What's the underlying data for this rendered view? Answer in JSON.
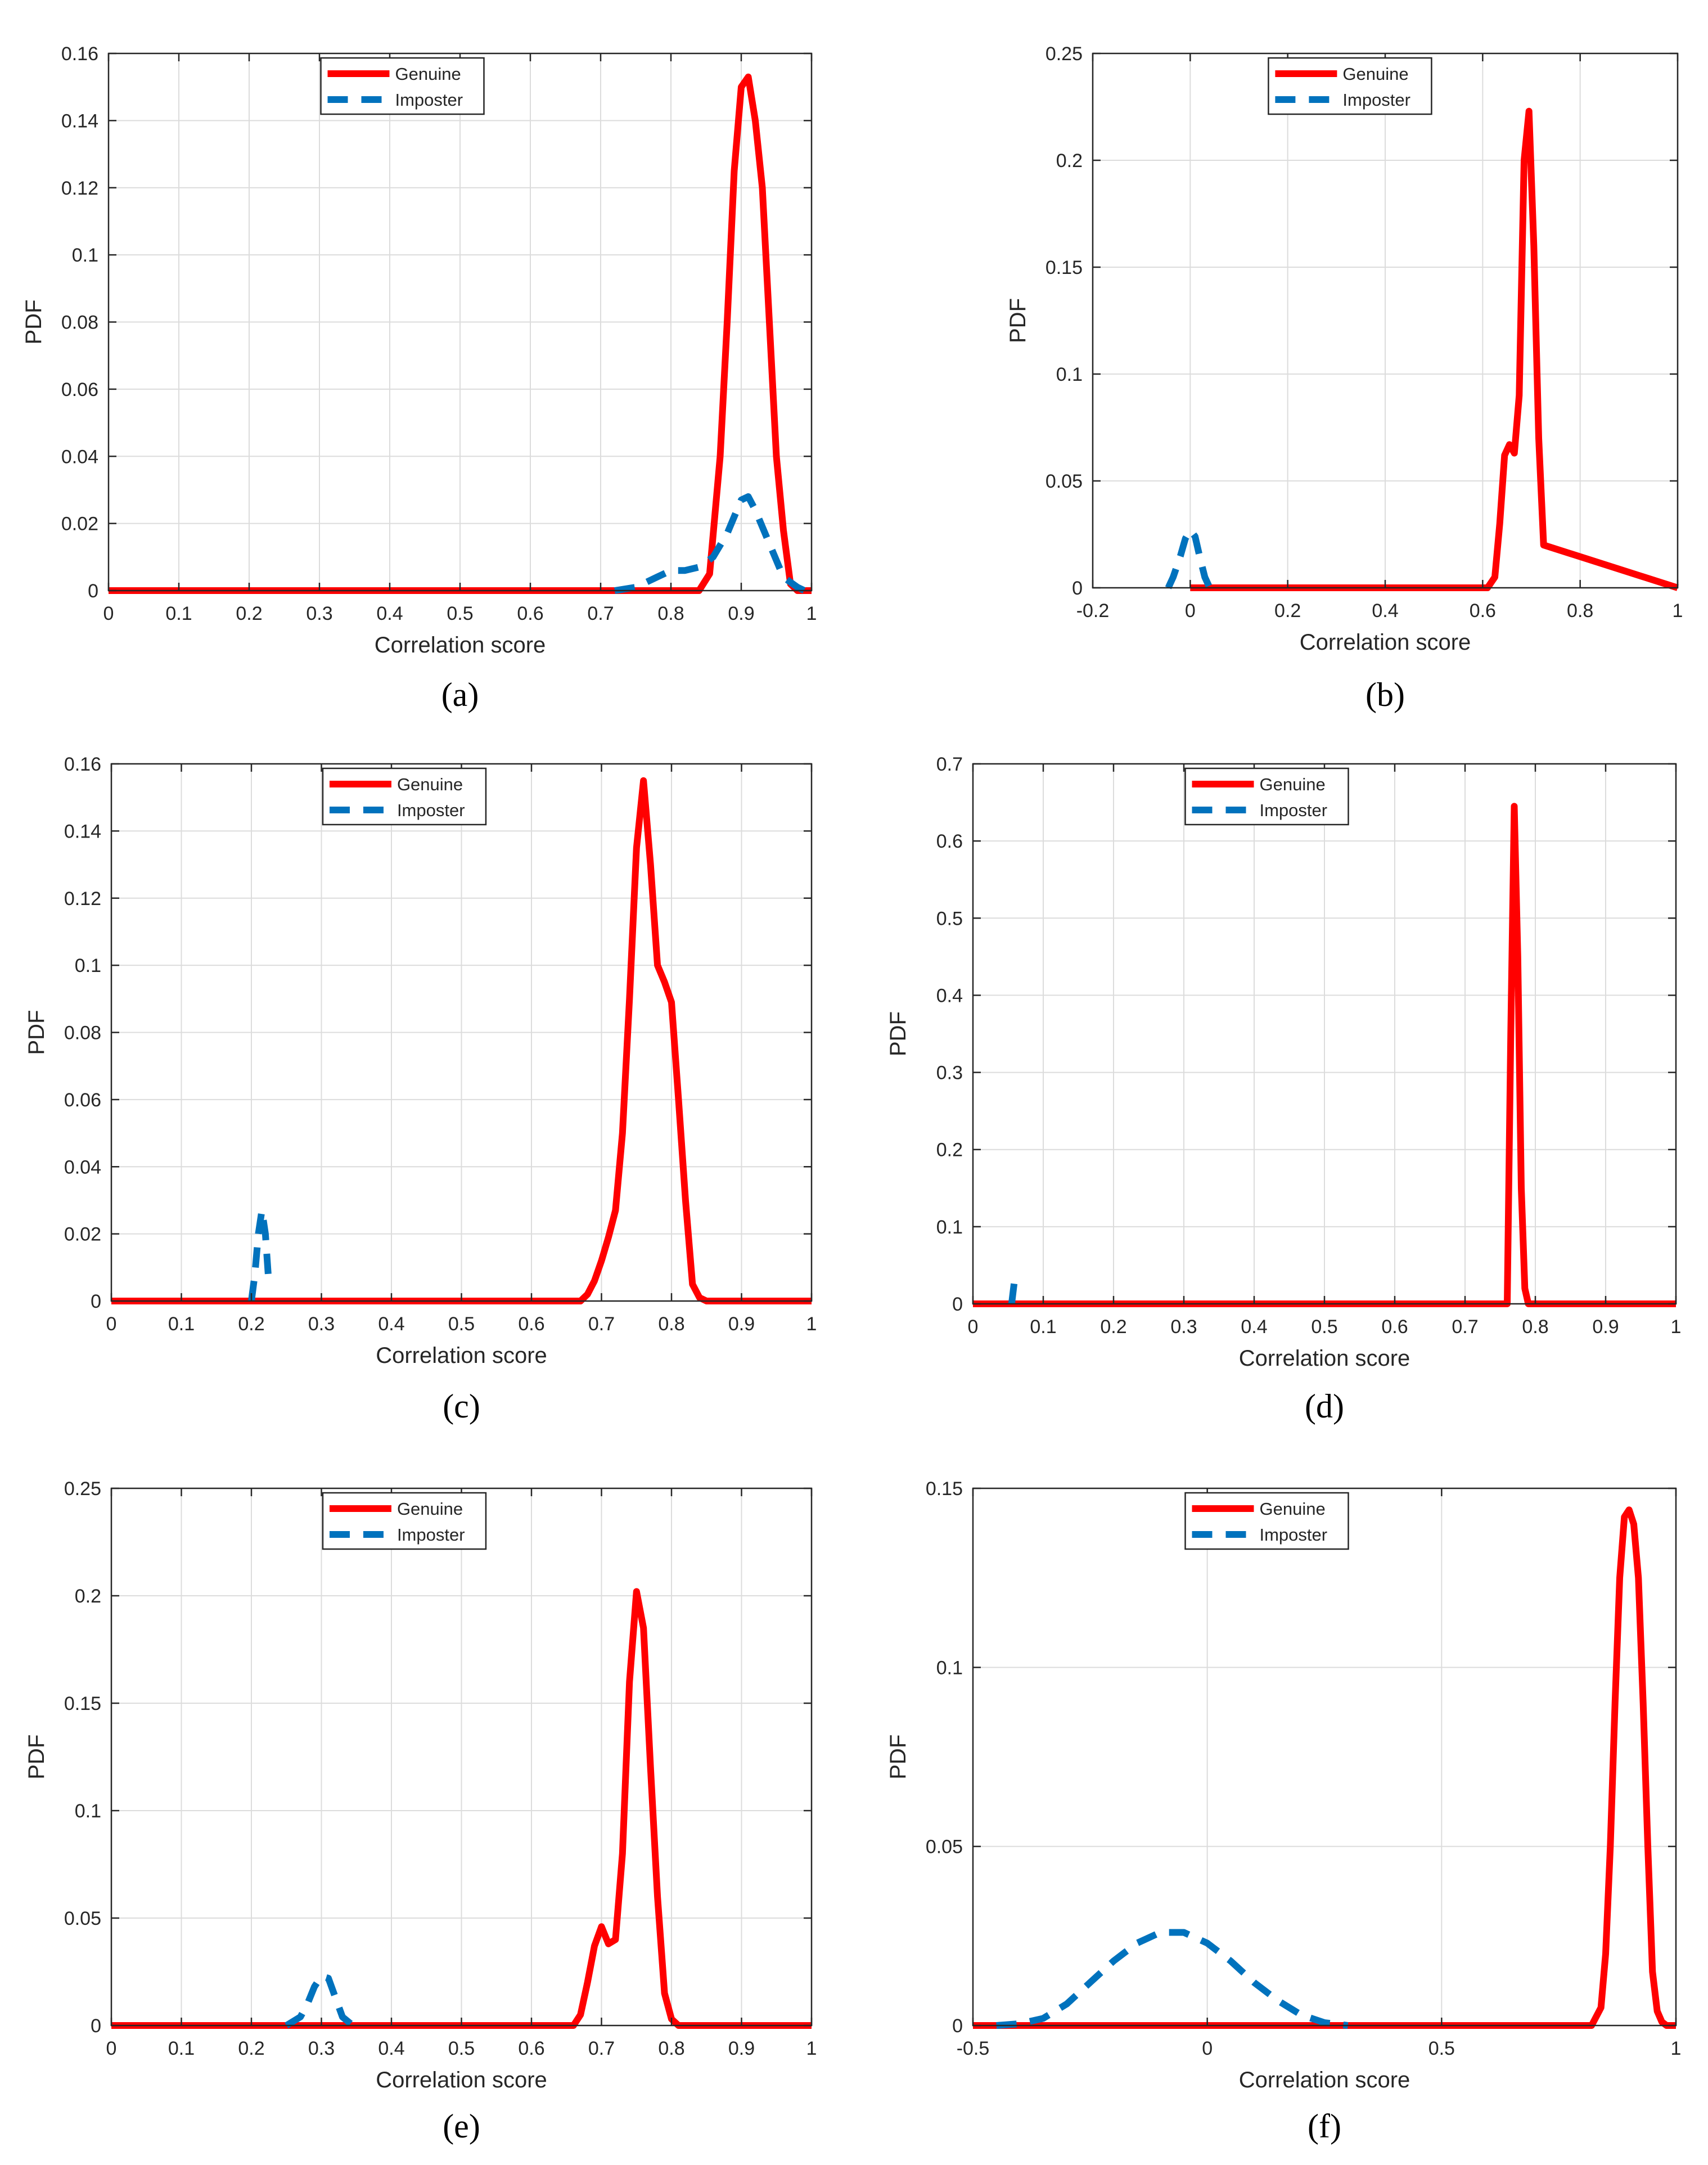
{
  "figure": {
    "colors": {
      "genuine": "#ff0000",
      "imposter": "#0072bd",
      "grid": "#dcdcdc",
      "axis": "#262626"
    }
  },
  "chart_data": [
    {
      "id": "a",
      "panel_label": "(a)",
      "type": "line",
      "xlabel": "Correlation score",
      "ylabel": "PDF",
      "xlim": [
        0,
        1
      ],
      "ylim": [
        0,
        0.16
      ],
      "xticks": [
        0,
        0.1,
        0.2,
        0.3,
        0.4,
        0.5,
        0.6,
        0.7,
        0.8,
        0.9,
        1
      ],
      "xtick_labels": [
        "0",
        "0.1",
        "0.2",
        "0.3",
        "0.4",
        "0.5",
        "0.6",
        "0.7",
        "0.8",
        "0.9",
        "1"
      ],
      "yticks": [
        0,
        0.02,
        0.04,
        0.06,
        0.08,
        0.1,
        0.12,
        0.14,
        0.16
      ],
      "ytick_labels": [
        "0",
        "0.02",
        "0.04",
        "0.06",
        "0.08",
        "0.1",
        "0.12",
        "0.14",
        "0.16"
      ],
      "grid": true,
      "legend_position": "top-center",
      "series": [
        {
          "name": "Genuine",
          "style": "solid",
          "color": "#ff0000",
          "x": [
            0,
            0.84,
            0.855,
            0.87,
            0.88,
            0.89,
            0.9,
            0.91,
            0.92,
            0.93,
            0.94,
            0.95,
            0.96,
            0.97,
            0.98,
            1
          ],
          "y": [
            0,
            0,
            0.005,
            0.04,
            0.08,
            0.125,
            0.15,
            0.153,
            0.14,
            0.12,
            0.08,
            0.04,
            0.018,
            0.002,
            0,
            0
          ]
        },
        {
          "name": "Imposter",
          "style": "dashed",
          "color": "#0072bd",
          "x": [
            0.72,
            0.75,
            0.78,
            0.8,
            0.82,
            0.84,
            0.86,
            0.88,
            0.9,
            0.91,
            0.92,
            0.94,
            0.96,
            0.98,
            0.99
          ],
          "y": [
            0,
            0.001,
            0.004,
            0.006,
            0.006,
            0.007,
            0.01,
            0.017,
            0.027,
            0.028,
            0.024,
            0.014,
            0.004,
            0.001,
            0
          ]
        }
      ]
    },
    {
      "id": "b",
      "panel_label": "(b)",
      "type": "line",
      "xlabel": "Correlation score",
      "ylabel": "PDF",
      "xlim": [
        -0.2,
        1
      ],
      "ylim": [
        0,
        0.25
      ],
      "xticks": [
        -0.2,
        0,
        0.2,
        0.4,
        0.6,
        0.8,
        1
      ],
      "xtick_labels": [
        "-0.2",
        "0",
        "0.2",
        "0.4",
        "0.6",
        "0.8",
        "1"
      ],
      "yticks": [
        0,
        0.05,
        0.1,
        0.15,
        0.2,
        0.25
      ],
      "ytick_labels": [
        "0",
        "0.05",
        "0.1",
        "0.15",
        "0.2",
        "0.25"
      ],
      "grid": true,
      "legend_position": "top-center",
      "series": [
        {
          "name": "Genuine",
          "style": "solid",
          "color": "#ff0000",
          "x": [
            0,
            0.61,
            0.625,
            0.635,
            0.645,
            0.655,
            0.665,
            0.675,
            0.685,
            0.695,
            0.705,
            0.715,
            0.725,
            1
          ],
          "y": [
            0,
            0,
            0.005,
            0.03,
            0.062,
            0.067,
            0.063,
            0.09,
            0.2,
            0.223,
            0.16,
            0.07,
            0.02,
            0
          ]
        },
        {
          "name": "Imposter",
          "style": "dashed",
          "color": "#0072bd",
          "x": [
            -0.045,
            -0.035,
            -0.02,
            -0.01,
            0,
            0.01,
            0.02,
            0.03,
            0.04
          ],
          "y": [
            0,
            0.005,
            0.015,
            0.023,
            0.027,
            0.024,
            0.014,
            0.005,
            0
          ]
        }
      ]
    },
    {
      "id": "c",
      "panel_label": "(c)",
      "type": "line",
      "xlabel": "Correlation score",
      "ylabel": "PDF",
      "xlim": [
        0,
        1
      ],
      "ylim": [
        0,
        0.16
      ],
      "xticks": [
        0,
        0.1,
        0.2,
        0.3,
        0.4,
        0.5,
        0.6,
        0.7,
        0.8,
        0.9,
        1
      ],
      "xtick_labels": [
        "0",
        "0.1",
        "0.2",
        "0.3",
        "0.4",
        "0.5",
        "0.6",
        "0.7",
        "0.8",
        "0.9",
        "1"
      ],
      "yticks": [
        0,
        0.02,
        0.04,
        0.06,
        0.08,
        0.1,
        0.12,
        0.14,
        0.16
      ],
      "ytick_labels": [
        "0",
        "0.02",
        "0.04",
        "0.06",
        "0.08",
        "0.1",
        "0.12",
        "0.14",
        "0.16"
      ],
      "grid": true,
      "legend_position": "top-center",
      "series": [
        {
          "name": "Genuine",
          "style": "solid",
          "color": "#ff0000",
          "x": [
            0,
            0.67,
            0.68,
            0.69,
            0.7,
            0.71,
            0.72,
            0.73,
            0.74,
            0.75,
            0.76,
            0.77,
            0.78,
            0.79,
            0.8,
            0.81,
            0.82,
            0.83,
            0.84,
            0.85,
            1
          ],
          "y": [
            0,
            0,
            0.002,
            0.006,
            0.012,
            0.019,
            0.027,
            0.05,
            0.09,
            0.135,
            0.155,
            0.13,
            0.1,
            0.095,
            0.089,
            0.06,
            0.03,
            0.005,
            0.001,
            0,
            0
          ]
        },
        {
          "name": "Imposter",
          "style": "dashed",
          "color": "#0072bd",
          "x": [
            0.2,
            0.205,
            0.21,
            0.215,
            0.22,
            0.225
          ],
          "y": [
            0,
            0.008,
            0.02,
            0.027,
            0.02,
            0.005
          ]
        }
      ]
    },
    {
      "id": "d",
      "panel_label": "(d)",
      "type": "line",
      "xlabel": "Correlation score",
      "ylabel": "PDF",
      "xlim": [
        0,
        1
      ],
      "ylim": [
        0,
        0.7
      ],
      "xticks": [
        0,
        0.1,
        0.2,
        0.3,
        0.4,
        0.5,
        0.6,
        0.7,
        0.8,
        0.9,
        1
      ],
      "xtick_labels": [
        "0",
        "0.1",
        "0.2",
        "0.3",
        "0.4",
        "0.5",
        "0.6",
        "0.7",
        "0.8",
        "0.9",
        "1"
      ],
      "yticks": [
        0,
        0.1,
        0.2,
        0.3,
        0.4,
        0.5,
        0.6,
        0.7
      ],
      "ytick_labels": [
        "0",
        "0.1",
        "0.2",
        "0.3",
        "0.4",
        "0.5",
        "0.6",
        "0.7"
      ],
      "grid": true,
      "legend_position": "top-center",
      "series": [
        {
          "name": "Genuine",
          "style": "solid",
          "color": "#ff0000",
          "x": [
            0,
            0.76,
            0.765,
            0.77,
            0.775,
            0.78,
            0.785,
            0.79,
            1
          ],
          "y": [
            0,
            0,
            0.35,
            0.645,
            0.45,
            0.15,
            0.02,
            0,
            0
          ]
        },
        {
          "name": "Imposter",
          "style": "dashed",
          "color": "#0072bd",
          "x": [
            0.055,
            0.057,
            0.059
          ],
          "y": [
            0,
            0.015,
            0.03
          ]
        }
      ]
    },
    {
      "id": "e",
      "panel_label": "(e)",
      "type": "line",
      "xlabel": "Correlation score",
      "ylabel": "PDF",
      "xlim": [
        0,
        1
      ],
      "ylim": [
        0,
        0.25
      ],
      "xticks": [
        0,
        0.1,
        0.2,
        0.3,
        0.4,
        0.5,
        0.6,
        0.7,
        0.8,
        0.9,
        1
      ],
      "xtick_labels": [
        "0",
        "0.1",
        "0.2",
        "0.3",
        "0.4",
        "0.5",
        "0.6",
        "0.7",
        "0.8",
        "0.9",
        "1"
      ],
      "yticks": [
        0,
        0.05,
        0.1,
        0.15,
        0.2,
        0.25
      ],
      "ytick_labels": [
        "0",
        "0.05",
        "0.1",
        "0.15",
        "0.2",
        "0.25"
      ],
      "grid": true,
      "legend_position": "top-center",
      "series": [
        {
          "name": "Genuine",
          "style": "solid",
          "color": "#ff0000",
          "x": [
            0,
            0.66,
            0.67,
            0.68,
            0.69,
            0.7,
            0.71,
            0.72,
            0.73,
            0.74,
            0.75,
            0.76,
            0.77,
            0.78,
            0.79,
            0.8,
            0.81,
            1
          ],
          "y": [
            0,
            0,
            0.005,
            0.02,
            0.037,
            0.046,
            0.038,
            0.04,
            0.08,
            0.16,
            0.202,
            0.185,
            0.12,
            0.06,
            0.015,
            0.003,
            0,
            0
          ]
        },
        {
          "name": "Imposter",
          "style": "dashed",
          "color": "#0072bd",
          "x": [
            0.25,
            0.27,
            0.28,
            0.29,
            0.3,
            0.31,
            0.32,
            0.33,
            0.345
          ],
          "y": [
            0,
            0.004,
            0.01,
            0.018,
            0.023,
            0.022,
            0.013,
            0.004,
            0
          ]
        }
      ]
    },
    {
      "id": "f",
      "panel_label": "(f)",
      "type": "line",
      "xlabel": "Correlation score",
      "ylabel": "PDF",
      "xlim": [
        -0.5,
        1
      ],
      "ylim": [
        0,
        0.15
      ],
      "xticks": [
        -0.5,
        0,
        0.5,
        1
      ],
      "xtick_labels": [
        "-0.5",
        "0",
        "0.5",
        "1"
      ],
      "yticks": [
        0,
        0.05,
        0.1,
        0.15
      ],
      "ytick_labels": [
        "0",
        "0.05",
        "0.1",
        "0.15"
      ],
      "grid": true,
      "legend_position": "top-center",
      "series": [
        {
          "name": "Genuine",
          "style": "solid",
          "color": "#ff0000",
          "x": [
            -0.5,
            0.82,
            0.84,
            0.85,
            0.86,
            0.87,
            0.88,
            0.89,
            0.9,
            0.91,
            0.92,
            0.93,
            0.94,
            0.95,
            0.96,
            0.97,
            0.98,
            1
          ],
          "y": [
            0,
            0,
            0.005,
            0.02,
            0.05,
            0.09,
            0.125,
            0.142,
            0.144,
            0.14,
            0.125,
            0.09,
            0.05,
            0.015,
            0.004,
            0.001,
            0,
            0
          ]
        },
        {
          "name": "Imposter",
          "style": "dashed",
          "color": "#0072bd",
          "x": [
            -0.45,
            -0.4,
            -0.35,
            -0.3,
            -0.25,
            -0.2,
            -0.15,
            -0.1,
            -0.05,
            0,
            0.05,
            0.1,
            0.15,
            0.2,
            0.25,
            0.3
          ],
          "y": [
            0,
            0.0005,
            0.002,
            0.006,
            0.012,
            0.018,
            0.023,
            0.026,
            0.026,
            0.023,
            0.018,
            0.012,
            0.007,
            0.003,
            0.0008,
            0
          ]
        }
      ]
    }
  ]
}
